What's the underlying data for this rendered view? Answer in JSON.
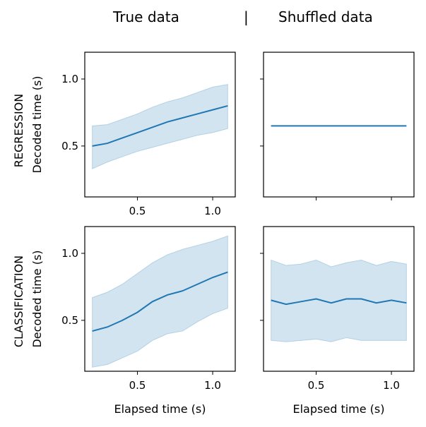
{
  "header": {
    "left_title": "True data",
    "separator": "|",
    "right_title": "Shuffled data"
  },
  "row_labels": {
    "top": "REGRESSION",
    "bottom": "CLASSIFICATION"
  },
  "colors": {
    "line": "#1f77b4",
    "band": "#1f77b4"
  },
  "chart_data": [
    {
      "type": "line",
      "panel": "top-left",
      "xlabel": "",
      "ylabel": "Decoded time (s)",
      "xlim": [
        0.15,
        1.15
      ],
      "ylim": [
        0.12,
        1.2
      ],
      "xticks": [
        "0.5",
        "1.0"
      ],
      "yticks": [
        "0.5",
        "1.0"
      ],
      "x": [
        0.2,
        0.3,
        0.4,
        0.5,
        0.6,
        0.7,
        0.8,
        0.9,
        1.0,
        1.1
      ],
      "y": [
        0.5,
        0.52,
        0.56,
        0.6,
        0.64,
        0.68,
        0.71,
        0.74,
        0.77,
        0.8
      ],
      "y_low": [
        0.33,
        0.38,
        0.42,
        0.46,
        0.49,
        0.52,
        0.55,
        0.58,
        0.6,
        0.63
      ],
      "y_high": [
        0.65,
        0.66,
        0.7,
        0.74,
        0.79,
        0.83,
        0.86,
        0.9,
        0.94,
        0.96
      ]
    },
    {
      "type": "line",
      "panel": "top-right",
      "xlabel": "",
      "ylabel": "",
      "xlim": [
        0.15,
        1.15
      ],
      "ylim": [
        0.12,
        1.2
      ],
      "xticks": [],
      "yticks": [],
      "x": [
        0.2,
        0.3,
        0.4,
        0.5,
        0.6,
        0.7,
        0.8,
        0.9,
        1.0,
        1.1
      ],
      "y": [
        0.65,
        0.65,
        0.65,
        0.65,
        0.65,
        0.65,
        0.65,
        0.65,
        0.65,
        0.65
      ],
      "y_low": [
        0.65,
        0.65,
        0.65,
        0.65,
        0.65,
        0.65,
        0.65,
        0.65,
        0.65,
        0.65
      ],
      "y_high": [
        0.65,
        0.65,
        0.65,
        0.65,
        0.65,
        0.65,
        0.65,
        0.65,
        0.65,
        0.65
      ]
    },
    {
      "type": "line",
      "panel": "bottom-left",
      "xlabel": "Elapsed time (s)",
      "ylabel": "Decoded time (s)",
      "xlim": [
        0.15,
        1.15
      ],
      "ylim": [
        0.12,
        1.2
      ],
      "xticks": [
        "0.5",
        "1.0"
      ],
      "yticks": [
        "0.5",
        "1.0"
      ],
      "x": [
        0.2,
        0.3,
        0.4,
        0.5,
        0.6,
        0.7,
        0.8,
        0.9,
        1.0,
        1.1
      ],
      "y": [
        0.42,
        0.45,
        0.5,
        0.56,
        0.64,
        0.69,
        0.72,
        0.77,
        0.82,
        0.86
      ],
      "y_low": [
        0.15,
        0.17,
        0.22,
        0.27,
        0.35,
        0.4,
        0.42,
        0.49,
        0.55,
        0.59
      ],
      "y_high": [
        0.67,
        0.71,
        0.77,
        0.85,
        0.93,
        0.99,
        1.03,
        1.06,
        1.09,
        1.13
      ]
    },
    {
      "type": "line",
      "panel": "bottom-right",
      "xlabel": "Elapsed time (s)",
      "ylabel": "",
      "xlim": [
        0.15,
        1.15
      ],
      "ylim": [
        0.12,
        1.2
      ],
      "xticks": [
        "0.5",
        "1.0"
      ],
      "yticks": [],
      "x": [
        0.2,
        0.3,
        0.4,
        0.5,
        0.6,
        0.7,
        0.8,
        0.9,
        1.0,
        1.1
      ],
      "y": [
        0.65,
        0.62,
        0.64,
        0.66,
        0.63,
        0.66,
        0.66,
        0.63,
        0.65,
        0.63
      ],
      "y_low": [
        0.35,
        0.34,
        0.35,
        0.36,
        0.34,
        0.37,
        0.35,
        0.35,
        0.35,
        0.35
      ],
      "y_high": [
        0.95,
        0.91,
        0.92,
        0.95,
        0.9,
        0.93,
        0.95,
        0.91,
        0.94,
        0.92
      ]
    }
  ]
}
